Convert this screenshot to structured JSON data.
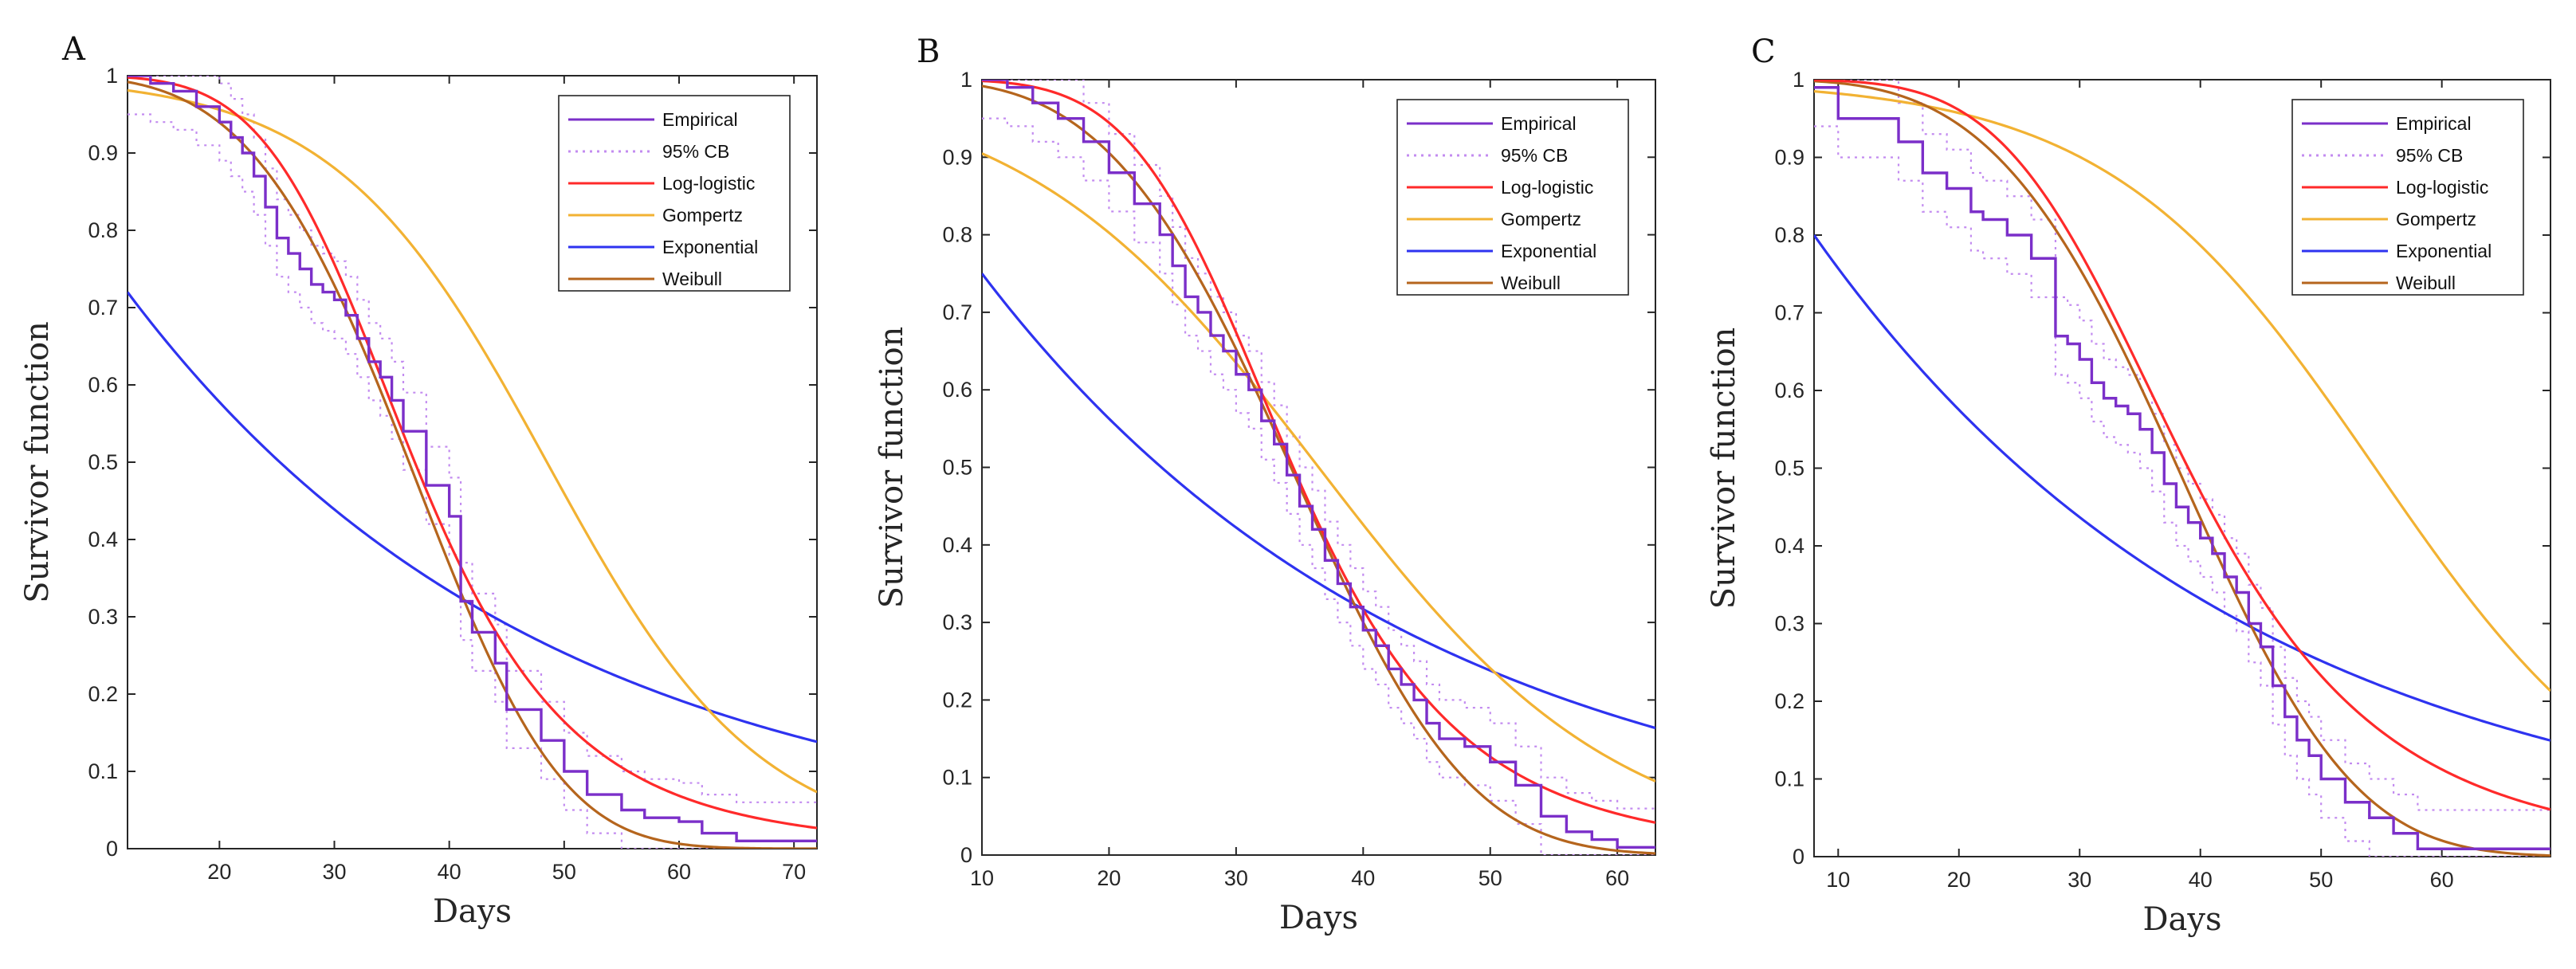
{
  "figure": {
    "panels": [
      "A",
      "B",
      "C"
    ]
  },
  "series_styles": [
    {
      "key": "empirical",
      "color": "#7b2fc9",
      "dash": "solid"
    },
    {
      "key": "cb",
      "color": "#c38cf0",
      "dash": "dotted"
    },
    {
      "key": "loglogistic",
      "color": "#ff2a2a",
      "dash": "solid"
    },
    {
      "key": "gompertz",
      "color": "#f2b233",
      "dash": "solid"
    },
    {
      "key": "exponential",
      "color": "#2e33f0",
      "dash": "solid"
    },
    {
      "key": "weibull",
      "color": "#b5651d",
      "dash": "solid"
    }
  ],
  "chart_data": [
    {
      "type": "line",
      "panel_label": "A",
      "xlabel": "Days",
      "ylabel": "Survivor function",
      "xlim": [
        12,
        72
      ],
      "ylim": [
        0,
        1
      ],
      "xticks": [
        "20",
        "30",
        "40",
        "50",
        "60",
        "70"
      ],
      "yticks": [
        "0",
        "0.1",
        "0.2",
        "0.3",
        "0.4",
        "0.5",
        "0.6",
        "0.7",
        "0.8",
        "0.9",
        "1"
      ],
      "legend": {
        "placement": "top-right",
        "entries": [
          "Empirical",
          "95% CB",
          "Log-logistic",
          "Gompertz",
          "Exponential",
          "Weibull"
        ]
      },
      "empirical_steps": {
        "x": [
          12,
          14,
          16,
          18,
          20,
          21,
          22,
          23,
          24,
          25,
          26,
          27,
          28,
          29,
          30,
          31,
          32,
          33,
          34,
          35,
          36,
          38,
          40,
          41,
          42,
          44,
          45,
          48,
          50,
          52,
          55,
          57,
          60,
          62,
          65,
          68,
          72
        ],
        "y": [
          1.0,
          0.99,
          0.98,
          0.96,
          0.94,
          0.92,
          0.9,
          0.87,
          0.83,
          0.79,
          0.77,
          0.75,
          0.73,
          0.72,
          0.71,
          0.69,
          0.66,
          0.63,
          0.61,
          0.58,
          0.54,
          0.47,
          0.43,
          0.32,
          0.28,
          0.24,
          0.18,
          0.14,
          0.1,
          0.07,
          0.05,
          0.04,
          0.035,
          0.02,
          0.01,
          0.01,
          0.01
        ]
      },
      "models": {
        "loglogistic": {
          "median": 37.0,
          "shape": 5.4
        },
        "gompertz": {
          "median": 48.5,
          "k": 0.108
        },
        "exponential": {
          "S0": 0.72,
          "decay_per_day": 0.0275
        },
        "weibull": {
          "lambda": 40.0,
          "shape": 4.0
        }
      }
    },
    {
      "type": "line",
      "panel_label": "B",
      "xlabel": "Days",
      "ylabel": "Survivor function",
      "xlim": [
        10,
        63
      ],
      "ylim": [
        0,
        1
      ],
      "xticks": [
        "10",
        "20",
        "30",
        "40",
        "50",
        "60"
      ],
      "yticks": [
        "0",
        "0.1",
        "0.2",
        "0.3",
        "0.4",
        "0.5",
        "0.6",
        "0.7",
        "0.8",
        "0.9",
        "1"
      ],
      "legend": {
        "placement": "top-right",
        "entries": [
          "Empirical",
          "95% CB",
          "Log-logistic",
          "Gompertz",
          "Exponential",
          "Weibull"
        ]
      },
      "empirical_steps": {
        "x": [
          10,
          12,
          14,
          16,
          18,
          20,
          22,
          24,
          25,
          26,
          27,
          28,
          29,
          30,
          31,
          32,
          33,
          34,
          35,
          36,
          37,
          38,
          39,
          40,
          41,
          42,
          43,
          44,
          45,
          46,
          48,
          50,
          52,
          54,
          56,
          58,
          60,
          63
        ],
        "y": [
          1.0,
          0.99,
          0.97,
          0.95,
          0.92,
          0.88,
          0.84,
          0.8,
          0.76,
          0.72,
          0.7,
          0.67,
          0.65,
          0.62,
          0.6,
          0.56,
          0.53,
          0.49,
          0.45,
          0.42,
          0.38,
          0.35,
          0.32,
          0.29,
          0.27,
          0.24,
          0.22,
          0.2,
          0.17,
          0.15,
          0.14,
          0.12,
          0.09,
          0.05,
          0.03,
          0.02,
          0.01,
          0.01
        ]
      },
      "models": {
        "loglogistic": {
          "median": 34.5,
          "shape": 5.2
        },
        "gompertz": {
          "median": 36.5,
          "k": 0.085
        },
        "exponential": {
          "S0": 0.75,
          "decay_per_day": 0.0287
        },
        "weibull": {
          "lambda": 38.0,
          "shape": 3.6
        }
      }
    },
    {
      "type": "line",
      "panel_label": "C",
      "xlabel": "Days",
      "ylabel": "Survivor function",
      "xlim": [
        8,
        69
      ],
      "ylim": [
        0,
        1
      ],
      "xticks": [
        "10",
        "20",
        "30",
        "40",
        "50",
        "60"
      ],
      "yticks": [
        "0",
        "0.1",
        "0.2",
        "0.3",
        "0.4",
        "0.5",
        "0.6",
        "0.7",
        "0.8",
        "0.9",
        "1"
      ],
      "legend": {
        "placement": "top-right",
        "entries": [
          "Empirical",
          "95% CB",
          "Log-logistic",
          "Gompertz",
          "Exponential",
          "Weibull"
        ]
      },
      "empirical_steps": {
        "x": [
          8,
          10,
          15,
          17,
          19,
          21,
          22,
          24,
          26,
          28,
          29,
          30,
          31,
          32,
          33,
          34,
          35,
          36,
          37,
          38,
          39,
          40,
          41,
          42,
          43,
          44,
          45,
          46,
          47,
          48,
          49,
          50,
          52,
          54,
          56,
          58,
          60,
          69
        ],
        "y": [
          0.99,
          0.95,
          0.92,
          0.88,
          0.86,
          0.83,
          0.82,
          0.8,
          0.77,
          0.67,
          0.66,
          0.64,
          0.61,
          0.59,
          0.58,
          0.57,
          0.55,
          0.52,
          0.48,
          0.45,
          0.43,
          0.41,
          0.39,
          0.36,
          0.34,
          0.3,
          0.27,
          0.22,
          0.18,
          0.15,
          0.13,
          0.1,
          0.07,
          0.05,
          0.03,
          0.01,
          0.01,
          0.01
        ]
      },
      "models": {
        "loglogistic": {
          "median": 39.0,
          "shape": 4.8
        },
        "gompertz": {
          "median": 54.5,
          "k": 0.09
        },
        "exponential": {
          "S0": 0.8,
          "decay_per_day": 0.0275
        },
        "weibull": {
          "lambda": 42.0,
          "shape": 3.8
        }
      }
    }
  ]
}
